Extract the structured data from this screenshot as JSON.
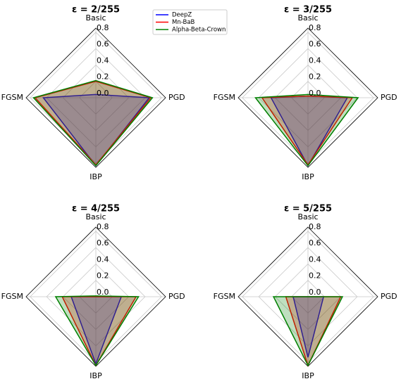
{
  "chart_data": [
    {
      "type": "radar",
      "title": "ε = 2/255",
      "categories": [
        "Basic",
        "PGD",
        "IBP",
        "FGSM"
      ],
      "series": [
        {
          "name": "DeepZ",
          "color": "#0000ff",
          "values": [
            0.04,
            0.65,
            0.83,
            0.64
          ]
        },
        {
          "name": "Mn-BaB",
          "color": "#ff0000",
          "values": [
            0.2,
            0.67,
            0.82,
            0.74
          ]
        },
        {
          "name": "Alpha-Beta-Crown",
          "color": "#008000",
          "values": [
            0.21,
            0.69,
            0.83,
            0.76
          ]
        }
      ],
      "rlim": [
        0,
        0.85
      ],
      "rticks": [
        {
          "value": 0,
          "label": "0.0"
        },
        0.2,
        0.4,
        0.6,
        0.8
      ],
      "grid": true,
      "legend": "upper right"
    },
    {
      "type": "radar",
      "title": "ε = 3/255",
      "categories": [
        "Basic",
        "PGD",
        "IBP",
        "FGSM"
      ],
      "series": [
        {
          "color": "#0000ff",
          "values": [
            0.02,
            0.48,
            0.83,
            0.45
          ]
        },
        {
          "color": "#ff0000",
          "values": [
            0.02,
            0.54,
            0.82,
            0.56
          ]
        },
        {
          "color": "#008000",
          "values": [
            0.04,
            0.61,
            0.83,
            0.64
          ]
        }
      ],
      "rlim": [
        0,
        0.85
      ],
      "rticks": [
        {
          "value": 0,
          "label": "0.0"
        },
        0.2,
        0.4,
        0.6,
        0.8
      ],
      "grid": true
    },
    {
      "type": "radar",
      "title": "ε = 4/255",
      "categories": [
        "Basic",
        "PGD",
        "IBP",
        "FGSM"
      ],
      "series": [
        {
          "color": "#0000ff",
          "values": [
            0,
            0.31,
            0.82,
            0.3
          ]
        },
        {
          "color": "#ff0000",
          "values": [
            0,
            0.49,
            0.84,
            0.41
          ]
        },
        {
          "color": "#008000",
          "values": [
            0.01,
            0.52,
            0.84,
            0.49
          ]
        }
      ],
      "rlim": [
        0,
        0.85
      ],
      "rticks": [
        {
          "value": 0,
          "label": "0.0"
        },
        0.2,
        0.4,
        0.6,
        0.8
      ],
      "grid": true
    },
    {
      "type": "radar",
      "title": "ε = 5/255",
      "categories": [
        "Basic",
        "PGD",
        "IBP",
        "FGSM"
      ],
      "series": [
        {
          "color": "#0000ff",
          "values": [
            0,
            0.19,
            0.74,
            0.18
          ]
        },
        {
          "color": "#ff0000",
          "values": [
            0,
            0.4,
            0.84,
            0.27
          ]
        },
        {
          "color": "#008000",
          "values": [
            0,
            0.42,
            0.84,
            0.42
          ]
        }
      ],
      "rlim": [
        0,
        0.85
      ],
      "rticks": [
        {
          "value": 0,
          "label": "0.0"
        },
        0.2,
        0.4,
        0.6,
        0.8
      ],
      "grid": true
    }
  ]
}
